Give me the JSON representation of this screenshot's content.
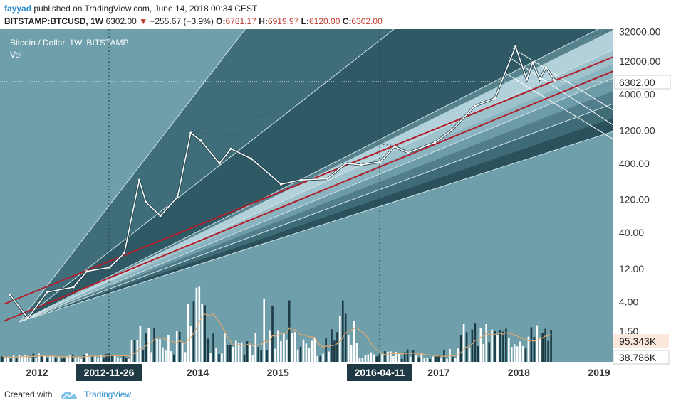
{
  "header": {
    "author": "fayyad",
    "published_text": "published on TradingView.com, June 14, 2018 00:34 CEST",
    "symbol": "BITSTAMP:BTCUSD, 1W",
    "last": "6302.00",
    "change_arrow": "▼",
    "change": "−255.67 (−3.9%)",
    "open_label": "O:",
    "open": "6781.17",
    "high_label": "H:",
    "high": "6919.97",
    "low_label": "L:",
    "low": "6120.00",
    "close_label": "C:",
    "close": "6302.00"
  },
  "legend": {
    "title": "Bitcoin / Dollar, 1W, BITSTAMP",
    "volume_label": "Vol"
  },
  "footer": {
    "created_with": "Created with",
    "brand": "TradingView",
    "logo_icon": "tradingview-cloud-icon"
  },
  "colors": {
    "plot_bg": "#6e9fab",
    "axis_bg": "#ffffff",
    "channel_line": "#b21e2b",
    "volume_bar": "#ffffff",
    "volume_bar_dark": "#1c3b44",
    "volume_ma": "#e0a870",
    "price_label_bg": "#ffffff",
    "volume_label_bg": "#fde8dd"
  },
  "chart_data": {
    "type": "line",
    "title": "Bitcoin / Dollar, 1W, BITSTAMP",
    "y_scale": "log",
    "x_ticks": [
      "2012",
      "2014",
      "2015",
      "2017",
      "2018",
      "2019"
    ],
    "x_highlight_labels": [
      "2012-11-26",
      "2016-04-11"
    ],
    "y_ticks": [
      "32000.00",
      "12000.00",
      "4000.00",
      "1200.00",
      "400.00",
      "120.00",
      "40.00",
      "12.00",
      "4.00",
      "1.50"
    ],
    "current_price_label": "6302.00",
    "volume_labels": [
      "95.343K",
      "38.786K"
    ],
    "series": [
      {
        "name": "BTCUSD",
        "points": [
          [
            "2011-09-01",
            5
          ],
          [
            "2011-11-20",
            2.3
          ],
          [
            "2012-02-15",
            5.5
          ],
          [
            "2012-06-15",
            6.5
          ],
          [
            "2012-08-15",
            11
          ],
          [
            "2012-11-26",
            12.5
          ],
          [
            "2013-02-01",
            20
          ],
          [
            "2013-04-10",
            230
          ],
          [
            "2013-05-10",
            110
          ],
          [
            "2013-07-15",
            70
          ],
          [
            "2013-10-01",
            130
          ],
          [
            "2013-11-30",
            1100
          ],
          [
            "2014-01-15",
            850
          ],
          [
            "2014-04-10",
            400
          ],
          [
            "2014-06-01",
            650
          ],
          [
            "2014-09-01",
            470
          ],
          [
            "2015-01-15",
            200
          ],
          [
            "2015-04-15",
            230
          ],
          [
            "2015-08-15",
            240
          ],
          [
            "2015-11-05",
            400
          ],
          [
            "2016-01-15",
            380
          ],
          [
            "2016-04-11",
            420
          ],
          [
            "2016-06-15",
            700
          ],
          [
            "2016-08-15",
            570
          ],
          [
            "2016-12-15",
            800
          ],
          [
            "2017-03-01",
            1200
          ],
          [
            "2017-06-15",
            2700
          ],
          [
            "2017-09-15",
            3500
          ],
          [
            "2017-12-17",
            19500
          ],
          [
            "2018-02-06",
            6500
          ],
          [
            "2018-03-05",
            11500
          ],
          [
            "2018-04-06",
            6600
          ],
          [
            "2018-05-05",
            9800
          ],
          [
            "2018-06-14",
            6302
          ]
        ]
      }
    ],
    "volume_series": [
      {
        "name": "Volume"
      }
    ]
  }
}
